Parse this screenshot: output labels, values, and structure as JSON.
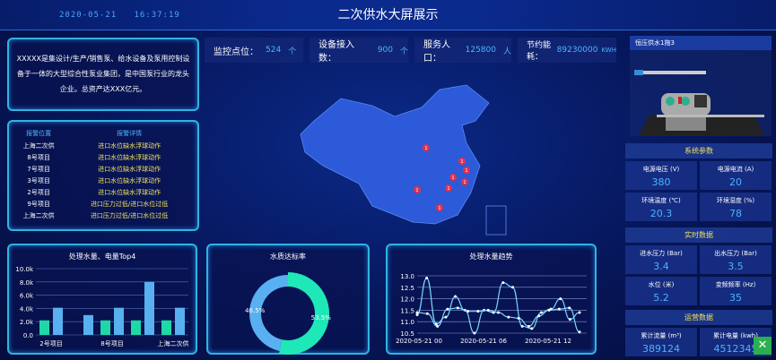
{
  "header": {
    "title": "二次供水大屏展示",
    "datetime": "2020-05-21   16:37:19"
  },
  "intro": "XXXXX是集设计/生产/销售泵、给水设备及泵用控制设备于一体的大型综合性泵业集团，是中国泵行业的龙头企业。总资产达XXX亿元。",
  "stats": [
    {
      "label": "监控点位：",
      "value": "524",
      "unit": "个"
    },
    {
      "label": "设备接入数：",
      "value": "900",
      "unit": "个"
    },
    {
      "label": "服务人口：",
      "value": "125800",
      "unit": "人"
    },
    {
      "label": "节约能耗：",
      "value": "89230000",
      "unit": "KWH"
    }
  ],
  "alarm": {
    "headers": [
      "报警位置",
      "报警详情"
    ],
    "rows": [
      [
        "上海二次供",
        "进口水位缺水浮球动作"
      ],
      [
        "8号项目",
        "进口水位缺水浮球动作"
      ],
      [
        "7号项目",
        "进口水位缺水浮球动作"
      ],
      [
        "3号项目",
        "进口水位缺水浮球动作"
      ],
      [
        "2号项目",
        "进口水位缺水浮球动作"
      ],
      [
        "9号项目",
        "进口压力过低/进口水位过低"
      ],
      [
        "上海二次供",
        "进口压力过低/进口水位过低"
      ]
    ]
  },
  "map": {
    "markers": [
      "1",
      "1",
      "1",
      "1",
      "1",
      "1",
      "1",
      "1"
    ]
  },
  "equipment": {
    "title": "恒压供水1拖3"
  },
  "system": {
    "title": "系统参数",
    "items": [
      {
        "label": "电源电压 (V)",
        "value": "380"
      },
      {
        "label": "电源电流 (A)",
        "value": "20"
      },
      {
        "label": "环境温度 (℃)",
        "value": "20.3"
      },
      {
        "label": "环境湿度 (%)",
        "value": "78"
      }
    ]
  },
  "realtime": {
    "title": "实时数据",
    "items": [
      {
        "label": "进水压力 (Bar)",
        "value": "3.4"
      },
      {
        "label": "出水压力 (Bar)",
        "value": "3.5"
      },
      {
        "label": "水位 (米)",
        "value": "5.2"
      },
      {
        "label": "变频频率 (Hz)",
        "value": "35"
      }
    ]
  },
  "operation": {
    "title": "运营数据",
    "items": [
      {
        "label": "累计流量 (m³)",
        "value": "389124"
      },
      {
        "label": "累计电量 (kwh)",
        "value": "4512345"
      }
    ]
  },
  "colors": {
    "accent": "#2fb4e0",
    "green": "#1ed8a8",
    "blue": "#58b0f0",
    "line": "#7ad8ff"
  },
  "chart_data": [
    {
      "type": "bar",
      "title": "处理水量、电量Top4",
      "tick_labels": [
        "2号项目",
        "8号项目",
        "上海二次供"
      ],
      "categories": [
        "2号项目",
        "",
        "8号项目",
        "",
        "上海二次供"
      ],
      "series": [
        {
          "values": [
            2.2,
            0,
            2.2,
            2.2,
            2.2
          ],
          "color": "#1ed8a8"
        },
        {
          "values": [
            4.1,
            3.0,
            4.1,
            8.0,
            4.1
          ],
          "color": "#58b0f0"
        }
      ],
      "yticks": [
        "0.0",
        "2.0k",
        "4.0k",
        "6.0k",
        "8.0k",
        "10.0k"
      ],
      "ylim": [
        0,
        10
      ],
      "grid": true
    },
    {
      "type": "pie",
      "title": "水质达标率",
      "donut": true,
      "slices": [
        {
          "value": 53.5,
          "label": "53.5%",
          "color": "#1ee8b8"
        },
        {
          "value": 46.5,
          "label": "46.5%",
          "color": "#58b0f0"
        }
      ]
    },
    {
      "type": "line",
      "title": "处理水量趋势",
      "xticks": [
        "2020-05-21 00",
        "2020-05-21 06",
        "2020-05-21 12"
      ],
      "yticks": [
        "10.5",
        "11.0",
        "11.5",
        "12.0",
        "12.5",
        "13.0"
      ],
      "ylim": [
        10.5,
        13.0
      ],
      "grid": true,
      "series": [
        {
          "values": [
            11.3,
            12.9,
            10.9,
            11.2,
            12.1,
            11.5,
            10.5,
            11.5,
            11.4,
            12.7,
            12.5,
            10.8,
            10.7,
            11.4,
            11.55,
            12.0,
            11.1,
            11.4
          ]
        },
        {
          "values": [
            11.4,
            11.35,
            10.8,
            11.55,
            11.6,
            11.45,
            11.45,
            11.5,
            11.4,
            11.2,
            11.15,
            10.8,
            11.25,
            11.5,
            11.55,
            11.6,
            10.55
          ]
        }
      ]
    }
  ]
}
